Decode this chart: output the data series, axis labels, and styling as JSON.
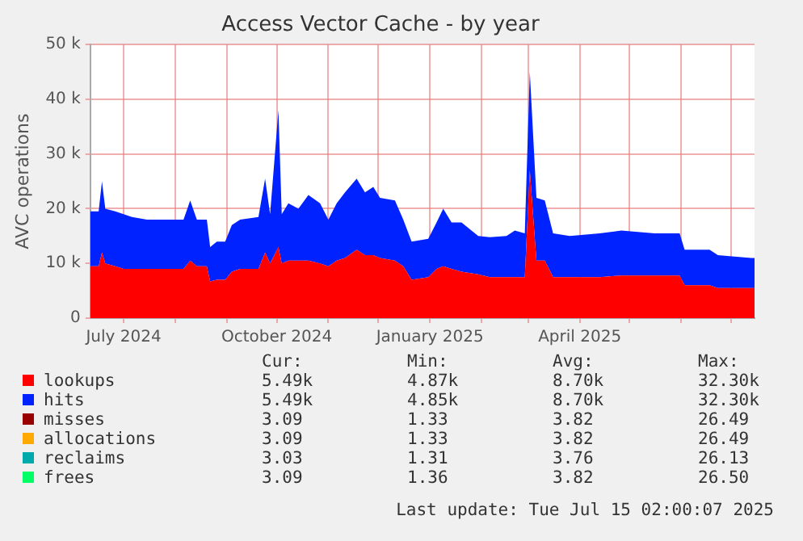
{
  "chart_data": {
    "type": "area",
    "stacked": true,
    "title": "Access Vector Cache - by year",
    "ylabel": "AVC operations",
    "x": [
      "2024-06-11",
      "2024-06-16",
      "2024-06-18",
      "2024-06-20",
      "2024-06-26",
      "2024-07-01",
      "2024-07-06",
      "2024-07-15",
      "2024-07-28",
      "2024-08-06",
      "2024-08-10",
      "2024-08-14",
      "2024-08-20",
      "2024-08-22",
      "2024-08-26",
      "2024-08-31",
      "2024-09-04",
      "2024-09-09",
      "2024-09-20",
      "2024-09-24",
      "2024-09-27",
      "2024-10-02",
      "2024-10-04",
      "2024-10-08",
      "2024-10-14",
      "2024-10-20",
      "2024-10-27",
      "2024-11-01",
      "2024-11-06",
      "2024-11-11",
      "2024-11-18",
      "2024-11-23",
      "2024-11-28",
      "2024-12-02",
      "2024-12-11",
      "2024-12-16",
      "2024-12-21",
      "2024-12-31",
      "2025-01-05",
      "2025-01-09",
      "2025-01-14",
      "2025-01-20",
      "2025-01-30",
      "2025-02-06",
      "2025-02-16",
      "2025-02-21",
      "2025-02-27",
      "2025-03-02",
      "2025-03-06",
      "2025-03-11",
      "2025-03-16",
      "2025-03-26",
      "2025-04-13",
      "2025-04-26",
      "2025-05-16",
      "2025-05-31",
      "2025-06-03",
      "2025-06-18",
      "2025-06-23",
      "2025-07-13",
      "2025-07-15"
    ],
    "series": [
      {
        "name": "lookups",
        "color": "#ff0000",
        "values": [
          9500,
          9500,
          12000,
          10000,
          9500,
          9000,
          9000,
          9000,
          9000,
          9000,
          10500,
          9500,
          9500,
          6700,
          7000,
          7000,
          8500,
          9000,
          9000,
          12000,
          10000,
          13000,
          10000,
          10500,
          10500,
          10500,
          10000,
          9500,
          10500,
          11000,
          12500,
          11500,
          11500,
          11000,
          10500,
          9500,
          7000,
          7500,
          9000,
          9500,
          9000,
          8500,
          8000,
          7500,
          7500,
          7500,
          7500,
          27000,
          10500,
          10500,
          7500,
          7500,
          7500,
          7800,
          7800,
          7800,
          6000,
          6000,
          5500,
          5500,
          5500
        ]
      },
      {
        "name": "hits",
        "color": "#0022ff",
        "values": [
          10000,
          10000,
          13000,
          10000,
          10000,
          10000,
          9500,
          9000,
          9000,
          9000,
          11000,
          8500,
          8500,
          6300,
          7000,
          7000,
          8500,
          9000,
          9500,
          13500,
          9000,
          25000,
          9000,
          10500,
          9500,
          12000,
          11000,
          8500,
          10500,
          12000,
          13000,
          11500,
          12500,
          11000,
          11000,
          8500,
          7000,
          7000,
          8500,
          10500,
          8500,
          9000,
          7000,
          7300,
          7500,
          8500,
          8000,
          18000,
          11500,
          11000,
          8000,
          7500,
          8000,
          8200,
          7700,
          7700,
          6500,
          6500,
          6000,
          5500,
          5500
        ]
      },
      {
        "name": "misses",
        "color": "#990000",
        "values": [
          null,
          null,
          null,
          null,
          null,
          null,
          null,
          null,
          null,
          null,
          null,
          null,
          null,
          null,
          null,
          null,
          null,
          null,
          null,
          null,
          null,
          null,
          null,
          null,
          null,
          null,
          null,
          null,
          null,
          null,
          null,
          null,
          null,
          null,
          null,
          null,
          null,
          null,
          null,
          null,
          null,
          null,
          null,
          null,
          null,
          null,
          null,
          null,
          null,
          null,
          null,
          null,
          null,
          null,
          null,
          null,
          null,
          null,
          null,
          null,
          null
        ]
      },
      {
        "name": "allocations",
        "color": "#ffaa00",
        "values": [
          null,
          null,
          null,
          null,
          null,
          null,
          null,
          null,
          null,
          null,
          null,
          null,
          null,
          null,
          null,
          null,
          null,
          null,
          null,
          null,
          null,
          null,
          null,
          null,
          null,
          null,
          null,
          null,
          null,
          null,
          null,
          null,
          null,
          null,
          null,
          null,
          null,
          null,
          null,
          null,
          null,
          null,
          null,
          null,
          null,
          null,
          null,
          null,
          null,
          null,
          null,
          null,
          null,
          null,
          null,
          null,
          null,
          null,
          null,
          null,
          null
        ]
      },
      {
        "name": "reclaims",
        "color": "#00aaaa",
        "values": [
          null,
          null,
          null,
          null,
          null,
          null,
          null,
          null,
          null,
          null,
          null,
          null,
          null,
          null,
          null,
          null,
          null,
          null,
          null,
          null,
          null,
          null,
          null,
          null,
          null,
          null,
          null,
          null,
          null,
          null,
          null,
          null,
          null,
          null,
          null,
          null,
          null,
          null,
          null,
          null,
          null,
          null,
          null,
          null,
          null,
          null,
          null,
          null,
          null,
          null,
          null,
          null,
          null,
          null,
          null,
          null,
          null,
          null,
          null,
          null,
          null
        ]
      },
      {
        "name": "frees",
        "color": "#00ff66",
        "values": [
          null,
          null,
          null,
          null,
          null,
          null,
          null,
          null,
          null,
          null,
          null,
          null,
          null,
          null,
          null,
          null,
          null,
          null,
          null,
          null,
          null,
          null,
          null,
          null,
          null,
          null,
          null,
          null,
          null,
          null,
          null,
          null,
          null,
          null,
          null,
          null,
          null,
          null,
          null,
          null,
          null,
          null,
          null,
          null,
          null,
          null,
          null,
          null,
          null,
          null,
          null,
          null,
          null,
          null,
          null,
          null,
          null,
          null,
          null,
          null,
          null
        ]
      }
    ],
    "xlim": [
      "2024-06-11",
      "2025-07-15"
    ],
    "xticks": [
      {
        "value": "2024-07-01",
        "label": "July 2024"
      },
      {
        "value": "2024-08-01",
        "label": null
      },
      {
        "value": "2024-09-01",
        "label": null
      },
      {
        "value": "2024-10-01",
        "label": "October 2024"
      },
      {
        "value": "2024-11-01",
        "label": null
      },
      {
        "value": "2024-12-01",
        "label": null
      },
      {
        "value": "2025-01-01",
        "label": "January 2025"
      },
      {
        "value": "2025-02-01",
        "label": null
      },
      {
        "value": "2025-03-01",
        "label": null
      },
      {
        "value": "2025-04-01",
        "label": "April 2025"
      },
      {
        "value": "2025-05-01",
        "label": null
      },
      {
        "value": "2025-06-01",
        "label": null
      },
      {
        "value": "2025-07-01",
        "label": null
      }
    ],
    "ylim": [
      0,
      50000
    ],
    "yticks": [
      {
        "value": 0,
        "label": "0"
      },
      {
        "value": 10000,
        "label": "10 k"
      },
      {
        "value": 20000,
        "label": "20 k"
      },
      {
        "value": 30000,
        "label": "30 k"
      },
      {
        "value": 40000,
        "label": "40 k"
      },
      {
        "value": 50000,
        "label": "50 k"
      }
    ],
    "grid": true,
    "legend": "bottom",
    "annotations": [
      "Cur:",
      "Min:",
      "Avg:",
      "Max:",
      "5.49k",
      "4.87k",
      "8.70k",
      "32.30k",
      "5.49k",
      "4.85k",
      "8.70k",
      "32.30k",
      "3.09",
      "1.33",
      "3.82",
      "26.49",
      "3.09",
      "1.33",
      "3.82",
      "26.49",
      "3.03",
      "1.31",
      "3.76",
      "26.13",
      "3.09",
      "1.36",
      "3.82",
      "26.50",
      "Last update: Tue Jul 15 02:00:07 2025"
    ]
  }
}
